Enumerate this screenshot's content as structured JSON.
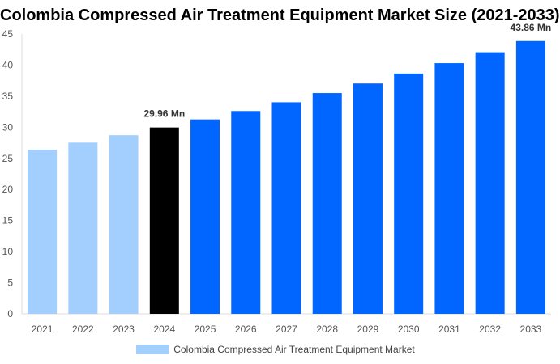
{
  "chart_data": {
    "type": "bar",
    "title": "Colombia Compressed Air Treatment Equipment Market Size (2021-2033)",
    "categories": [
      "2021",
      "2022",
      "2023",
      "2024",
      "2025",
      "2026",
      "2027",
      "2028",
      "2029",
      "2030",
      "2031",
      "2032",
      "2033"
    ],
    "series": [
      {
        "name": "Colombia Compressed Air Treatment Equipment Market",
        "values": [
          26.39,
          27.53,
          28.72,
          29.96,
          31.26,
          32.61,
          34.02,
          35.5,
          37.04,
          38.64,
          40.31,
          42.06,
          43.86
        ]
      }
    ],
    "data_labels": {
      "2024": "29.96 Mn",
      "2033": "43.86 Mn"
    },
    "ylim": [
      0,
      45
    ],
    "yticks": [
      0,
      5,
      10,
      15,
      20,
      25,
      30,
      35,
      40,
      45
    ],
    "grid": false,
    "legend": "bottom",
    "colors": {
      "historical": "#a3cfff",
      "base_year": "#000000",
      "forecast": "#0066ff"
    },
    "base_year": "2024"
  }
}
